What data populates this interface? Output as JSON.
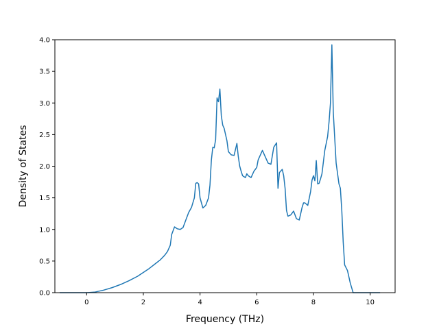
{
  "chart_data": {
    "type": "line",
    "title": "",
    "xlabel": "Frequency (THz)",
    "ylabel": "Density of States",
    "xlim": [
      -1.12,
      10.88
    ],
    "ylim": [
      0.0,
      4.0
    ],
    "xticks": [
      0,
      2,
      4,
      6,
      8,
      10
    ],
    "yticks": [
      0.0,
      0.5,
      1.0,
      1.5,
      2.0,
      2.5,
      3.0,
      3.5,
      4.0
    ],
    "xtick_labels": [
      "0",
      "2",
      "4",
      "6",
      "8",
      "10"
    ],
    "ytick_labels": [
      "0.0",
      "0.5",
      "1.0",
      "1.5",
      "2.0",
      "2.5",
      "3.0",
      "3.5",
      "4.0"
    ],
    "grid": false,
    "legend": "none",
    "series_color": "#1f77b4",
    "series": [
      {
        "x": [
          -0.95,
          -0.5,
          0.0,
          0.3,
          0.6,
          0.9,
          1.2,
          1.5,
          1.8,
          2.0,
          2.2,
          2.4,
          2.6,
          2.75,
          2.85,
          2.95,
          3.0,
          3.1,
          3.2,
          3.3,
          3.4,
          3.5,
          3.6,
          3.7,
          3.8,
          3.85,
          3.9,
          3.95,
          4.0,
          4.1,
          4.2,
          4.3,
          4.35,
          4.4,
          4.45,
          4.5,
          4.55,
          4.6,
          4.62,
          4.65,
          4.7,
          4.75,
          4.8,
          4.85,
          4.9,
          4.95,
          5.0,
          5.1,
          5.2,
          5.3,
          5.35,
          5.4,
          5.45,
          5.5,
          5.6,
          5.65,
          5.7,
          5.8,
          5.9,
          6.0,
          6.05,
          6.1,
          6.2,
          6.3,
          6.4,
          6.5,
          6.6,
          6.7,
          6.75,
          6.8,
          6.9,
          6.95,
          7.0,
          7.05,
          7.1,
          7.2,
          7.3,
          7.4,
          7.5,
          7.6,
          7.65,
          7.7,
          7.8,
          7.9,
          7.95,
          8.0,
          8.05,
          8.1,
          8.15,
          8.2,
          8.25,
          8.3,
          8.4,
          8.5,
          8.55,
          8.6,
          8.65,
          8.7,
          8.8,
          8.9,
          8.95,
          9.0,
          9.05,
          9.1,
          9.2,
          9.3,
          9.4,
          9.6,
          9.8,
          10.0,
          10.2,
          10.35
        ],
        "y": [
          0.0,
          0.0,
          0.0,
          0.01,
          0.04,
          0.08,
          0.13,
          0.19,
          0.26,
          0.32,
          0.38,
          0.45,
          0.52,
          0.59,
          0.65,
          0.75,
          0.92,
          1.04,
          1.01,
          1.0,
          1.03,
          1.15,
          1.27,
          1.35,
          1.5,
          1.73,
          1.74,
          1.72,
          1.5,
          1.34,
          1.38,
          1.5,
          1.7,
          2.1,
          2.3,
          2.29,
          2.42,
          3.08,
          3.05,
          3.02,
          3.22,
          2.8,
          2.65,
          2.6,
          2.5,
          2.4,
          2.23,
          2.18,
          2.17,
          2.36,
          2.15,
          2.0,
          1.92,
          1.85,
          1.82,
          1.88,
          1.85,
          1.82,
          1.92,
          1.98,
          2.1,
          2.15,
          2.25,
          2.15,
          2.05,
          2.03,
          2.3,
          2.37,
          1.65,
          1.9,
          1.95,
          1.85,
          1.65,
          1.3,
          1.21,
          1.23,
          1.29,
          1.17,
          1.15,
          1.35,
          1.42,
          1.42,
          1.38,
          1.6,
          1.78,
          1.85,
          1.77,
          2.09,
          1.72,
          1.73,
          1.8,
          1.88,
          2.25,
          2.47,
          2.7,
          3.0,
          3.92,
          2.85,
          2.05,
          1.72,
          1.65,
          1.3,
          0.8,
          0.44,
          0.35,
          0.15,
          0.0,
          0.0,
          0.0,
          0.0,
          0.0,
          0.0
        ]
      }
    ]
  }
}
